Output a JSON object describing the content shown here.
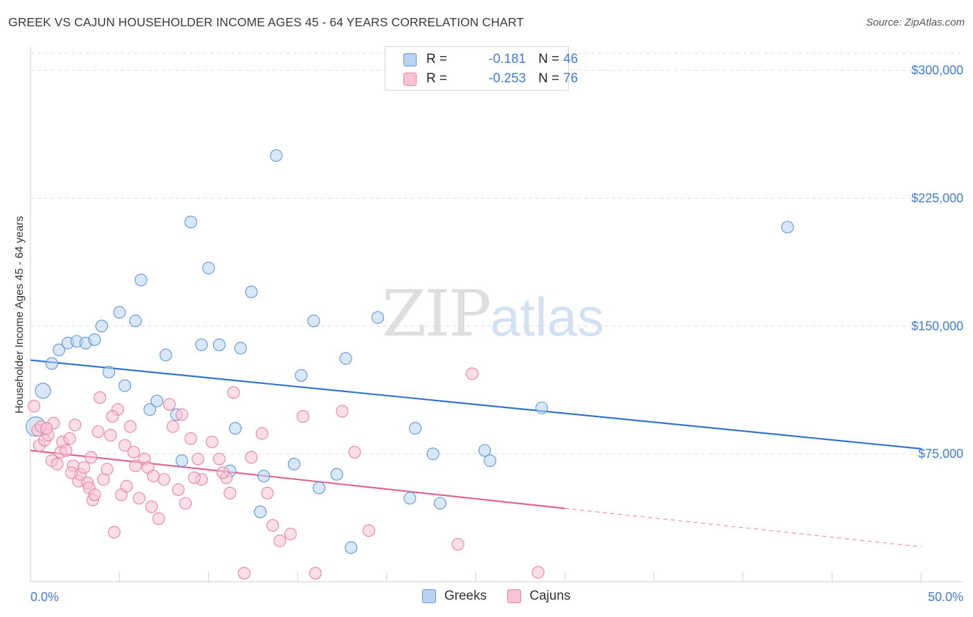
{
  "title": "GREEK VS CAJUN HOUSEHOLDER INCOME AGES 45 - 64 YEARS CORRELATION CHART",
  "source": "Source: ZipAtlas.com",
  "watermark": {
    "zip": "ZIP",
    "atlas": "atlas"
  },
  "legend": {
    "rows": [
      {
        "series": "Greeks",
        "r_label": "R =",
        "r_value": "-0.181",
        "n_label": "N =",
        "n_value": "46",
        "fill": "#b8d3f4",
        "stroke": "#5e95d8"
      },
      {
        "series": "Cajuns",
        "r_label": "R =",
        "r_value": "-0.253",
        "n_label": "N =",
        "n_value": "76",
        "fill": "#f9c3d4",
        "stroke": "#e983a5"
      }
    ]
  },
  "bottom_legend": [
    {
      "label": "Greeks",
      "fill": "#b8d3f4",
      "stroke": "#5e95d8"
    },
    {
      "label": "Cajuns",
      "fill": "#f9c3d4",
      "stroke": "#e983a5"
    }
  ],
  "chart_data": {
    "type": "scatter",
    "title": "GREEK VS CAJUN HOUSEHOLDER INCOME AGES 45 - 64 YEARS CORRELATION CHART",
    "xlabel": "",
    "ylabel": "Householder Income Ages 45 - 64 years",
    "xlim": [
      0,
      50
    ],
    "ylim": [
      0,
      310000
    ],
    "x_tick_labels": [
      "0.0%",
      "50.0%"
    ],
    "y_ticks": [
      75000,
      150000,
      225000,
      300000
    ],
    "y_tick_labels": [
      "$75,000",
      "$150,000",
      "$225,000",
      "$300,000"
    ],
    "grid": true,
    "series": [
      {
        "name": "Greeks",
        "color": "#5e95d8",
        "fill": "#b8d3f4",
        "trend_color": "#2f72d0",
        "trend": {
          "x0": 0,
          "y0": 130000,
          "x1": 50,
          "y1": 78000
        },
        "points": [
          [
            0.3,
            91000
          ],
          [
            0.7,
            112000
          ],
          [
            1.2,
            128000
          ],
          [
            1.6,
            136000
          ],
          [
            2.1,
            140000
          ],
          [
            2.6,
            141000
          ],
          [
            3.1,
            140000
          ],
          [
            3.6,
            142000
          ],
          [
            4.0,
            150000
          ],
          [
            4.4,
            123000
          ],
          [
            5.0,
            158000
          ],
          [
            5.3,
            115000
          ],
          [
            5.9,
            153000
          ],
          [
            6.2,
            177000
          ],
          [
            6.7,
            101000
          ],
          [
            7.1,
            106000
          ],
          [
            7.6,
            133000
          ],
          [
            8.2,
            98000
          ],
          [
            8.5,
            71000
          ],
          [
            9.0,
            211000
          ],
          [
            9.6,
            139000
          ],
          [
            10.0,
            184000
          ],
          [
            10.6,
            139000
          ],
          [
            11.2,
            65000
          ],
          [
            11.5,
            90000
          ],
          [
            11.8,
            137000
          ],
          [
            12.4,
            170000
          ],
          [
            12.9,
            41000
          ],
          [
            13.1,
            62000
          ],
          [
            13.8,
            250000
          ],
          [
            14.8,
            69000
          ],
          [
            15.2,
            121000
          ],
          [
            15.9,
            153000
          ],
          [
            16.2,
            55000
          ],
          [
            17.2,
            63000
          ],
          [
            17.7,
            131000
          ],
          [
            18.0,
            20000
          ],
          [
            19.5,
            155000
          ],
          [
            21.3,
            49000
          ],
          [
            21.6,
            90000
          ],
          [
            22.6,
            75000
          ],
          [
            23.0,
            46000
          ],
          [
            25.5,
            77000
          ],
          [
            25.8,
            71000
          ],
          [
            28.7,
            102000
          ],
          [
            42.5,
            208000
          ]
        ]
      },
      {
        "name": "Cajuns",
        "color": "#e983a5",
        "fill": "#f9c3d4",
        "trend_color": "#e0628f",
        "trend": {
          "x0": 0,
          "y0": 77000,
          "x1": 30,
          "y1": 43000
        },
        "trend_dashed": {
          "x0": 30,
          "y0": 43000,
          "x1": 50,
          "y1": 20500
        },
        "points": [
          [
            0.2,
            103000
          ],
          [
            0.4,
            89000
          ],
          [
            0.5,
            80000
          ],
          [
            0.6,
            91000
          ],
          [
            0.8,
            83000
          ],
          [
            1.0,
            86000
          ],
          [
            1.2,
            71000
          ],
          [
            1.3,
            93000
          ],
          [
            1.5,
            69000
          ],
          [
            1.7,
            76000
          ],
          [
            1.8,
            82000
          ],
          [
            2.0,
            77000
          ],
          [
            2.2,
            84000
          ],
          [
            2.4,
            68000
          ],
          [
            2.5,
            92000
          ],
          [
            2.7,
            59000
          ],
          [
            2.8,
            63000
          ],
          [
            3.0,
            67000
          ],
          [
            3.2,
            58000
          ],
          [
            3.3,
            55000
          ],
          [
            3.5,
            48000
          ],
          [
            3.6,
            51000
          ],
          [
            3.8,
            88000
          ],
          [
            3.9,
            108000
          ],
          [
            4.1,
            60000
          ],
          [
            4.3,
            66000
          ],
          [
            4.5,
            86000
          ],
          [
            4.7,
            29000
          ],
          [
            4.9,
            101000
          ],
          [
            5.1,
            51000
          ],
          [
            5.3,
            80000
          ],
          [
            5.4,
            56000
          ],
          [
            5.6,
            91000
          ],
          [
            5.8,
            76000
          ],
          [
            6.1,
            49000
          ],
          [
            6.4,
            72000
          ],
          [
            6.6,
            67000
          ],
          [
            6.9,
            62000
          ],
          [
            7.2,
            37000
          ],
          [
            7.5,
            60000
          ],
          [
            7.8,
            104000
          ],
          [
            8.0,
            91000
          ],
          [
            8.3,
            54000
          ],
          [
            8.5,
            98000
          ],
          [
            8.7,
            46000
          ],
          [
            9.0,
            84000
          ],
          [
            9.4,
            72000
          ],
          [
            9.6,
            60000
          ],
          [
            10.2,
            82000
          ],
          [
            10.6,
            72000
          ],
          [
            11.0,
            61000
          ],
          [
            11.2,
            52000
          ],
          [
            11.4,
            111000
          ],
          [
            12.0,
            5000
          ],
          [
            12.4,
            73000
          ],
          [
            13.0,
            87000
          ],
          [
            13.3,
            52000
          ],
          [
            14.0,
            24000
          ],
          [
            14.6,
            28000
          ],
          [
            15.3,
            97000
          ],
          [
            17.5,
            100000
          ],
          [
            18.2,
            76000
          ],
          [
            24.0,
            22000
          ],
          [
            24.8,
            122000
          ],
          [
            28.5,
            5500
          ],
          [
            4.6,
            97000
          ],
          [
            0.9,
            90000
          ],
          [
            3.4,
            73000
          ],
          [
            6.8,
            44000
          ],
          [
            9.2,
            61000
          ],
          [
            5.9,
            68000
          ],
          [
            2.3,
            64000
          ],
          [
            10.8,
            64000
          ],
          [
            13.6,
            33000
          ],
          [
            16.0,
            5000
          ],
          [
            19.0,
            30000
          ]
        ]
      }
    ]
  }
}
